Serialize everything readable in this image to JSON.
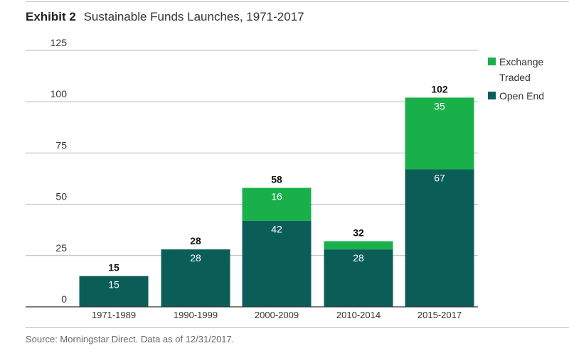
{
  "header": {
    "exhibit": "Exhibit 2",
    "title": "Sustainable Funds Launches, 1971-2017"
  },
  "source": "Source: Morningstar Direct. Data as of 12/31/2017.",
  "colors": {
    "open_end": "#0b5e58",
    "exchange_traded": "#19b04a",
    "grid": "#b5b5b5",
    "axis": "#333333"
  },
  "chart_data": {
    "type": "bar",
    "stacked": true,
    "categories": [
      "1971-1989",
      "1990-1999",
      "2000-2009",
      "2010-2014",
      "2015-2017"
    ],
    "series": [
      {
        "name": "Open End",
        "values": [
          15,
          28,
          42,
          28,
          67
        ],
        "value_labels": [
          "15",
          "28",
          "42",
          "28",
          "67"
        ]
      },
      {
        "name": "Exchange Traded",
        "values": [
          0,
          0,
          16,
          4,
          35
        ],
        "value_labels": [
          "",
          "",
          "16",
          "",
          "35"
        ]
      }
    ],
    "totals": [
      15,
      28,
      58,
      32,
      102
    ],
    "ylim": [
      0,
      125
    ],
    "yticks": [
      0,
      25,
      50,
      75,
      100,
      125
    ],
    "grid": true,
    "legend": {
      "position": "right",
      "entries": [
        "Exchange Traded",
        "Open End"
      ]
    }
  }
}
